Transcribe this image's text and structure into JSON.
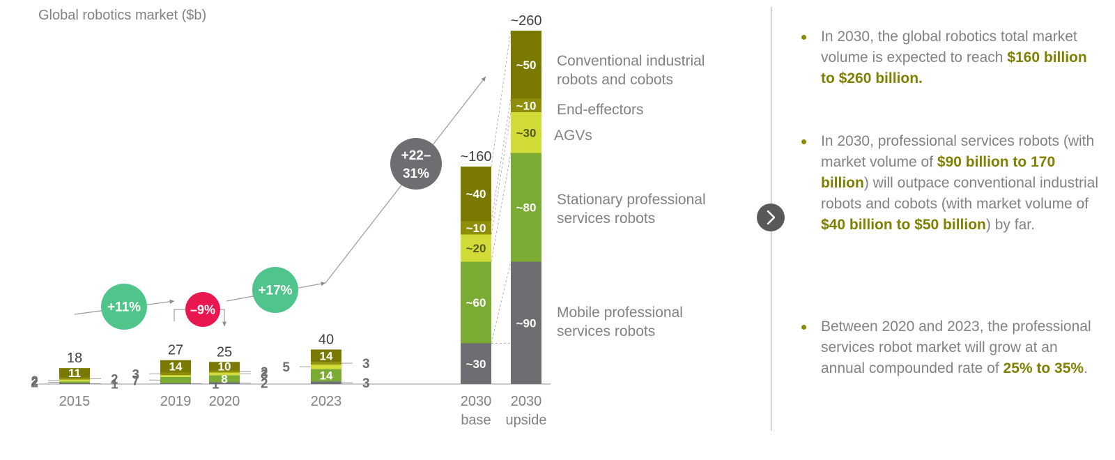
{
  "colors": {
    "dark_olive": "#7a7a02",
    "yellow_green": "#d2dc38",
    "green": "#7cab34",
    "gray": "#6d6e71",
    "growth_green": "#50c58b",
    "decline_red": "#e8174f",
    "growth_gray": "#6d6e71",
    "highlight_text": "#7f7f00"
  },
  "chart_data": {
    "type": "bar",
    "title": "Global robotics market ($b)",
    "stacked": true,
    "series_order": [
      "mobile_professional",
      "stationary_professional",
      "agvs",
      "end_effectors",
      "conventional_industrial"
    ],
    "series": [
      {
        "key": "conventional_industrial",
        "name": "Conventional industrial robots and cobots",
        "color": "#7a7a02"
      },
      {
        "key": "end_effectors",
        "name": "End-effectors",
        "color": "#8d8d06"
      },
      {
        "key": "agvs",
        "name": "AGVs",
        "color": "#d2dc38"
      },
      {
        "key": "stationary_professional",
        "name": "Stationary professional services robots",
        "color": "#7cab34"
      },
      {
        "key": "mobile_professional",
        "name": "Mobile professional services robots",
        "color": "#6d6e71"
      }
    ],
    "bars": [
      {
        "category": "2015",
        "sublabel": "",
        "total": "18",
        "total_value": 18,
        "segments": [
          {
            "series": "mobile_professional",
            "value": 1,
            "label": "1",
            "label_pos": "right"
          },
          {
            "series": "stationary_professional",
            "value": 2,
            "label": "2",
            "label_pos": "left"
          },
          {
            "series": "agvs",
            "value": 2,
            "label": "2",
            "label_pos": "left"
          },
          {
            "series": "end_effectors",
            "value": 2,
            "label": "2",
            "label_pos": "right"
          },
          {
            "series": "conventional_industrial",
            "value": 11,
            "label": "11",
            "label_pos": "inside"
          }
        ]
      },
      {
        "category": "2019",
        "sublabel": "",
        "total": "27",
        "total_value": 27,
        "segments": [
          {
            "series": "mobile_professional",
            "value": 1,
            "label": "1",
            "label_pos": "right"
          },
          {
            "series": "stationary_professional",
            "value": 7,
            "label": "7",
            "label_pos": "left"
          },
          {
            "series": "agvs",
            "value": 2,
            "label": "",
            "label_pos": "none"
          },
          {
            "series": "end_effectors",
            "value": 3,
            "label": "3",
            "label_pos": "left"
          },
          {
            "series": "conventional_industrial",
            "value": 14,
            "label": "14",
            "label_pos": "inside"
          }
        ]
      },
      {
        "category": "2020",
        "sublabel": "",
        "total": "25",
        "total_value": 25,
        "segments": [
          {
            "series": "mobile_professional",
            "value": 2,
            "label": "2",
            "label_pos": "right"
          },
          {
            "series": "stationary_professional",
            "value": 8,
            "label": "8",
            "label_pos": "inside"
          },
          {
            "series": "agvs",
            "value": 3,
            "label": "3",
            "label_pos": "right"
          },
          {
            "series": "end_effectors",
            "value": 2,
            "label": "2",
            "label_pos": "right"
          },
          {
            "series": "conventional_industrial",
            "value": 10,
            "label": "10",
            "label_pos": "inside"
          }
        ]
      },
      {
        "category": "2023",
        "sublabel": "",
        "total": "40",
        "total_value": 40,
        "segments": [
          {
            "series": "mobile_professional",
            "value": 3,
            "label": "3",
            "label_pos": "right"
          },
          {
            "series": "stationary_professional",
            "value": 14,
            "label": "14",
            "label_pos": "inside"
          },
          {
            "series": "agvs",
            "value": 5,
            "label": "5",
            "label_pos": "left"
          },
          {
            "series": "end_effectors",
            "value": 3,
            "label": "3",
            "label_pos": "right"
          },
          {
            "series": "conventional_industrial",
            "value": 14,
            "label": "14",
            "label_pos": "inside"
          }
        ]
      },
      {
        "category": "2030",
        "sublabel": "base",
        "total": "~160",
        "total_value": 160,
        "segments": [
          {
            "series": "mobile_professional",
            "value": 30,
            "label": "~30",
            "label_pos": "inside"
          },
          {
            "series": "stationary_professional",
            "value": 60,
            "label": "~60",
            "label_pos": "inside"
          },
          {
            "series": "agvs",
            "value": 20,
            "label": "~20",
            "label_pos": "inside"
          },
          {
            "series": "end_effectors",
            "value": 10,
            "label": "~10",
            "label_pos": "inside"
          },
          {
            "series": "conventional_industrial",
            "value": 40,
            "label": "~40",
            "label_pos": "inside"
          }
        ]
      },
      {
        "category": "2030",
        "sublabel": "upside",
        "total": "~260",
        "total_value": 260,
        "segments": [
          {
            "series": "mobile_professional",
            "value": 90,
            "label": "~90",
            "label_pos": "inside"
          },
          {
            "series": "stationary_professional",
            "value": 80,
            "label": "~80",
            "label_pos": "inside"
          },
          {
            "series": "agvs",
            "value": 30,
            "label": "~30",
            "label_pos": "inside"
          },
          {
            "series": "end_effectors",
            "value": 10,
            "label": "~10",
            "label_pos": "inside"
          },
          {
            "series": "conventional_industrial",
            "value": 50,
            "label": "~50",
            "label_pos": "inside"
          }
        ]
      }
    ],
    "growth_rates": [
      {
        "label": "+11%",
        "kind": "growth",
        "from": "2015",
        "to": "2019"
      },
      {
        "label": "–9%",
        "kind": "decline",
        "from": "2019",
        "to": "2020"
      },
      {
        "label": "+17%",
        "kind": "growth",
        "from": "2020",
        "to": "2023"
      },
      {
        "label_line1": "+22–",
        "label_line2": "31%",
        "kind": "forecast",
        "from": "2023",
        "to": "2030"
      }
    ],
    "legend": [
      {
        "series": "conventional_industrial",
        "lines": [
          "Conventional industrial",
          "robots and cobots"
        ]
      },
      {
        "series": "end_effectors",
        "lines": [
          "End-effectors"
        ]
      },
      {
        "series": "agvs",
        "lines": [
          "AGVs"
        ]
      },
      {
        "series": "stationary_professional",
        "lines": [
          "Stationary professional",
          "services robots"
        ]
      },
      {
        "series": "mobile_professional",
        "lines": [
          "Mobile professional",
          "services robots"
        ]
      }
    ]
  },
  "insights": {
    "bullet1": {
      "pre": "In 2030, the global robotics total market volume is expected to reach ",
      "highlight": "$160 billion to $260 billion."
    },
    "bullet2": {
      "pre": "In 2030, professional services robots (with market volume of ",
      "h1": "$90 billion to 170 billion",
      "mid": ") will outpace conventional industrial robots and cobots (with market volume of ",
      "h2": "$40 billion to $50 billion",
      "post": ") by far."
    },
    "bullet3": {
      "pre": "Between 2020 and 2023, the professional services robot market will grow at an annual compounded rate of ",
      "highlight": "25% to 35%",
      "post": "."
    }
  },
  "next_button": {
    "icon": "chevron-right-icon"
  }
}
